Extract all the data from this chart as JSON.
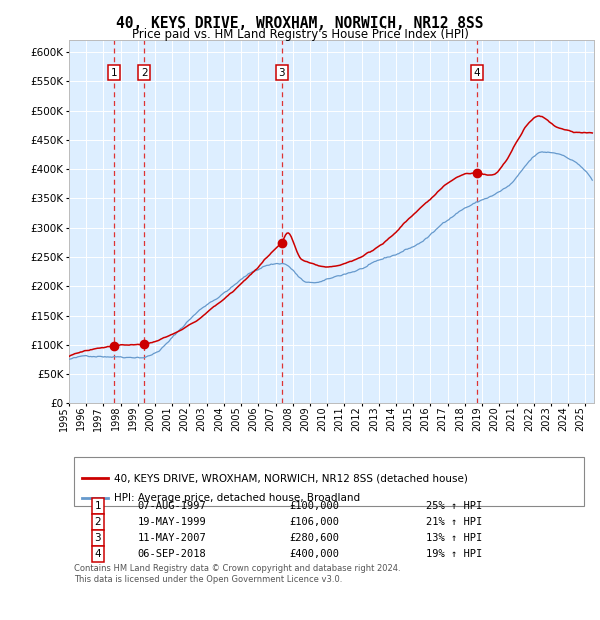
{
  "title": "40, KEYS DRIVE, WROXHAM, NORWICH, NR12 8SS",
  "subtitle": "Price paid vs. HM Land Registry's House Price Index (HPI)",
  "legend_property": "40, KEYS DRIVE, WROXHAM, NORWICH, NR12 8SS (detached house)",
  "legend_hpi": "HPI: Average price, detached house, Broadland",
  "footer_line1": "Contains HM Land Registry data © Crown copyright and database right 2024.",
  "footer_line2": "This data is licensed under the Open Government Licence v3.0.",
  "sales": [
    {
      "label": "1",
      "date": "07-AUG-1997",
      "price": "£100,000",
      "hpi_pct": "25% ↑ HPI",
      "x_year": 1997.6,
      "y_val": 100000
    },
    {
      "label": "2",
      "date": "19-MAY-1999",
      "price": "£106,000",
      "hpi_pct": "21% ↑ HPI",
      "x_year": 1999.38,
      "y_val": 106000
    },
    {
      "label": "3",
      "date": "11-MAY-2007",
      "price": "£280,600",
      "hpi_pct": "13% ↑ HPI",
      "x_year": 2007.36,
      "y_val": 280600
    },
    {
      "label": "4",
      "date": "06-SEP-2018",
      "price": "£400,000",
      "hpi_pct": "19% ↑ HPI",
      "x_year": 2018.68,
      "y_val": 400000
    }
  ],
  "red_color": "#cc0000",
  "blue_color": "#6699cc",
  "bg_color": "#ddeeff",
  "grid_color": "#ffffff",
  "dashed_color": "#dd3333",
  "ylim": [
    0,
    620000
  ],
  "xlim_start": 1995.0,
  "xlim_end": 2025.5,
  "yticks": [
    0,
    50000,
    100000,
    150000,
    200000,
    250000,
    300000,
    350000,
    400000,
    450000,
    500000,
    550000,
    600000
  ],
  "xticks": [
    1995,
    1996,
    1997,
    1998,
    1999,
    2000,
    2001,
    2002,
    2003,
    2004,
    2005,
    2006,
    2007,
    2008,
    2009,
    2010,
    2011,
    2012,
    2013,
    2014,
    2015,
    2016,
    2017,
    2018,
    2019,
    2020,
    2021,
    2022,
    2023,
    2024,
    2025
  ]
}
